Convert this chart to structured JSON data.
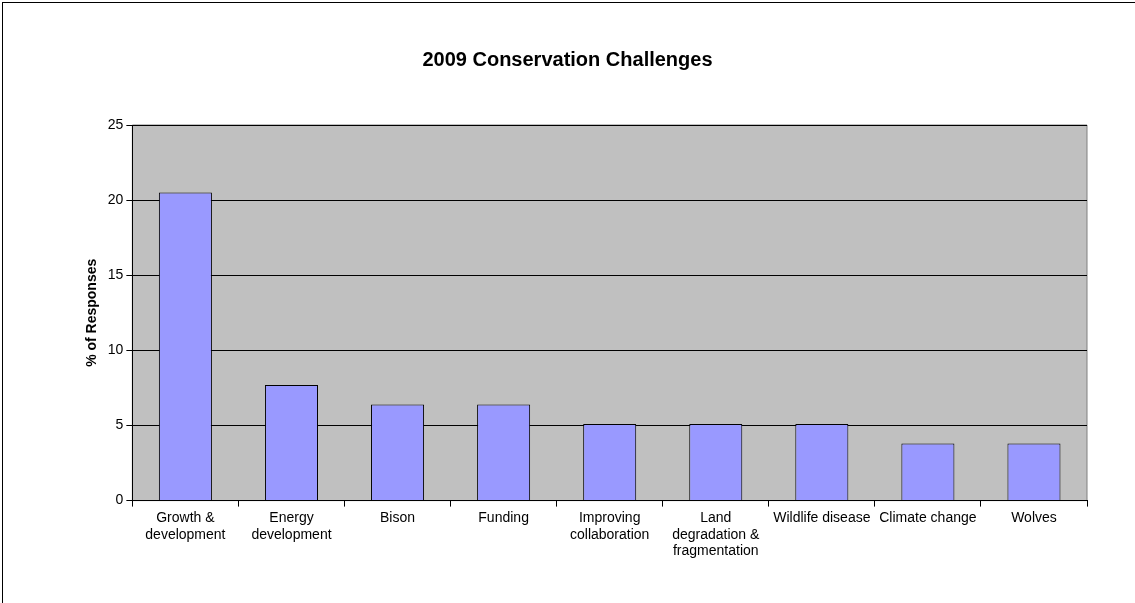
{
  "chart_data": {
    "type": "bar",
    "title": "2009 Conservation Challenges",
    "ylabel": "% of Responses",
    "categories": [
      "Growth & development",
      "Energy development",
      "Bison",
      "Funding",
      "Improving collaboration",
      "Land degradation & fragmentation",
      "Wildlife disease",
      "Climate change",
      "Wolves"
    ],
    "values": [
      20.5,
      7.7,
      6.4,
      6.4,
      5.1,
      5.1,
      5.1,
      3.8,
      3.8
    ],
    "color": "#9999ff",
    "ylim": [
      0,
      25
    ],
    "yticks": [
      0,
      5,
      10,
      15,
      20,
      25
    ],
    "grid": "y",
    "legend": false
  }
}
